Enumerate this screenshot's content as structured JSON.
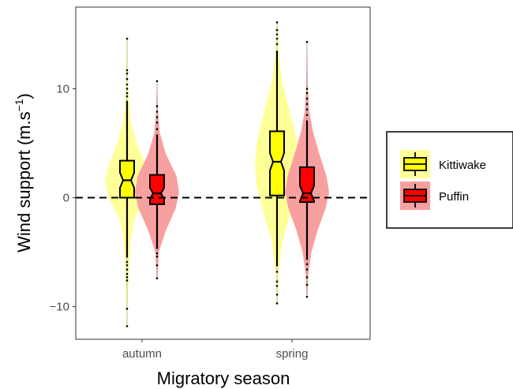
{
  "chart_data": {
    "type": "violin",
    "xlabel": "Migratory season",
    "ylabel": "Wind support (m.s",
    "ylabel_sup": "−1",
    "ylabel_close": ")",
    "ylim": [
      -13,
      17.5
    ],
    "yticks": [
      -10,
      0,
      10
    ],
    "categories": [
      "autumn",
      "spring"
    ],
    "reference_line": {
      "y": 0,
      "style": "dashed"
    },
    "grid": false,
    "legend": {
      "placement": "right"
    },
    "series": [
      {
        "name": "Kittiwake",
        "fill": "#ffff00",
        "violin_fill": "#ffff99",
        "groups": [
          {
            "category": "autumn",
            "min": -11.8,
            "q1": 0.0,
            "median": 1.6,
            "q3": 3.4,
            "max": 14.6,
            "whisker_low": -5.5,
            "whisker_high": 8.9,
            "notch": [
              0.9,
              2.3
            ],
            "outliers": [
              -11.8,
              -10.2,
              -7.6,
              -7.3,
              -7.0,
              -6.6,
              -6.2,
              -5.9,
              9.3,
              9.6,
              10.0,
              10.4,
              10.9,
              11.4,
              11.7,
              14.6
            ],
            "density": [
              [
                -11.8,
                0.01
              ],
              [
                -9,
                0.02
              ],
              [
                -6,
                0.05
              ],
              [
                -4,
                0.08
              ],
              [
                -2,
                0.16
              ],
              [
                0,
                0.42
              ],
              [
                1.5,
                0.5
              ],
              [
                3,
                0.42
              ],
              [
                5,
                0.22
              ],
              [
                7,
                0.09
              ],
              [
                9,
                0.04
              ],
              [
                11,
                0.02
              ],
              [
                14.6,
                0.01
              ]
            ]
          },
          {
            "category": "spring",
            "min": -9.7,
            "q1": 0.2,
            "median": 3.3,
            "q3": 6.1,
            "max": 16.1,
            "whisker_low": -6.3,
            "whisker_high": 13.5,
            "notch": [
              2.5,
              4.1
            ],
            "outliers": [
              -9.7,
              -8.9,
              -8.1,
              -7.7,
              -6.8,
              14.1,
              14.6,
              15.0,
              15.4,
              16.1
            ],
            "density": [
              [
                -9.7,
                0.01
              ],
              [
                -7,
                0.03
              ],
              [
                -4,
                0.12
              ],
              [
                -1,
                0.33
              ],
              [
                1,
                0.46
              ],
              [
                3,
                0.5
              ],
              [
                5,
                0.46
              ],
              [
                7,
                0.35
              ],
              [
                9,
                0.22
              ],
              [
                11,
                0.1
              ],
              [
                13,
                0.04
              ],
              [
                16.1,
                0.01
              ]
            ]
          }
        ]
      },
      {
        "name": "Puffin",
        "fill": "#ff0000",
        "violin_fill": "#f8a0a0",
        "groups": [
          {
            "category": "autumn",
            "min": -7.4,
            "q1": -0.6,
            "median": 0.4,
            "q3": 2.1,
            "max": 10.7,
            "whisker_low": -4.7,
            "whisker_high": 5.8,
            "notch": [
              -0.1,
              0.9
            ],
            "outliers": [
              -7.4,
              -6.2,
              -5.4,
              -5.1,
              6.3,
              6.9,
              7.4,
              7.9,
              8.4,
              10.7
            ],
            "density": [
              [
                -7.4,
                0.01
              ],
              [
                -5,
                0.04
              ],
              [
                -3,
                0.2
              ],
              [
                -1,
                0.42
              ],
              [
                0.5,
                0.5
              ],
              [
                2,
                0.44
              ],
              [
                4,
                0.2
              ],
              [
                6,
                0.06
              ],
              [
                8,
                0.02
              ],
              [
                10.7,
                0.005
              ]
            ]
          },
          {
            "category": "spring",
            "min": -9.1,
            "q1": -0.4,
            "median": 0.4,
            "q3": 2.8,
            "max": 14.3,
            "whisker_low": -5.7,
            "whisker_high": 7.1,
            "notch": [
              -0.3,
              1.1
            ],
            "outliers": [
              -9.1,
              -8.0,
              -7.3,
              -6.6,
              -6.1,
              7.6,
              8.1,
              8.6,
              9.1,
              9.6,
              10.0,
              14.3
            ],
            "density": [
              [
                -9.1,
                0.01
              ],
              [
                -7,
                0.03
              ],
              [
                -5,
                0.1
              ],
              [
                -3,
                0.24
              ],
              [
                -1,
                0.42
              ],
              [
                0.5,
                0.5
              ],
              [
                2,
                0.44
              ],
              [
                4,
                0.28
              ],
              [
                6,
                0.14
              ],
              [
                8,
                0.05
              ],
              [
                10,
                0.02
              ],
              [
                14.3,
                0.005
              ]
            ]
          }
        ]
      }
    ]
  }
}
